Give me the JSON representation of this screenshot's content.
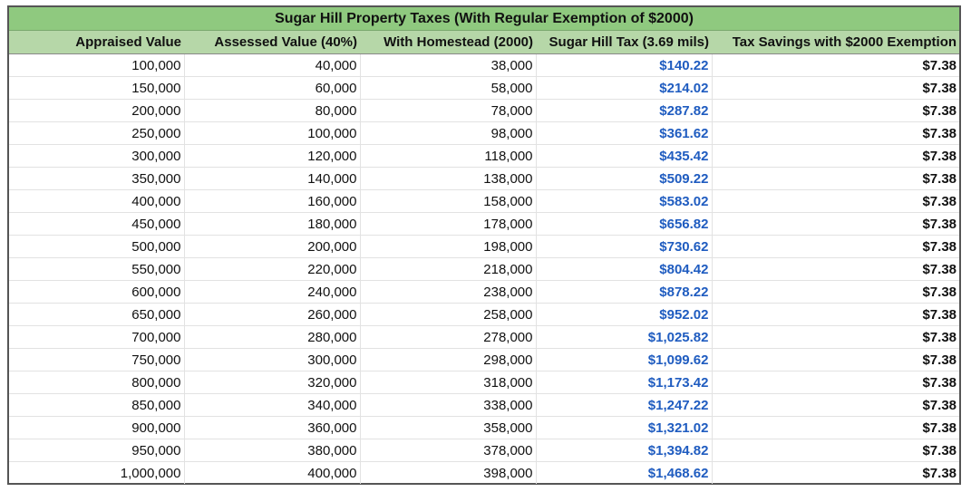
{
  "title": "Sugar Hill Property Taxes (With Regular Exemption of $2000)",
  "columns": [
    "Appraised Value",
    "Assessed Value (40%)",
    "With Homestead (2000)",
    "Sugar Hill Tax (3.69 mils)",
    "Tax Savings with $2000 Exemption"
  ],
  "colors": {
    "title_bg": "#8fc97f",
    "header_bg": "#b6d7a8",
    "tax_text": "#1f5cc0",
    "border": "#555555"
  },
  "rows": [
    {
      "appraised": "100,000",
      "assessed": "40,000",
      "homestead": "38,000",
      "tax": "$140.22",
      "savings": "$7.38"
    },
    {
      "appraised": "150,000",
      "assessed": "60,000",
      "homestead": "58,000",
      "tax": "$214.02",
      "savings": "$7.38"
    },
    {
      "appraised": "200,000",
      "assessed": "80,000",
      "homestead": "78,000",
      "tax": "$287.82",
      "savings": "$7.38"
    },
    {
      "appraised": "250,000",
      "assessed": "100,000",
      "homestead": "98,000",
      "tax": "$361.62",
      "savings": "$7.38"
    },
    {
      "appraised": "300,000",
      "assessed": "120,000",
      "homestead": "118,000",
      "tax": "$435.42",
      "savings": "$7.38"
    },
    {
      "appraised": "350,000",
      "assessed": "140,000",
      "homestead": "138,000",
      "tax": "$509.22",
      "savings": "$7.38"
    },
    {
      "appraised": "400,000",
      "assessed": "160,000",
      "homestead": "158,000",
      "tax": "$583.02",
      "savings": "$7.38"
    },
    {
      "appraised": "450,000",
      "assessed": "180,000",
      "homestead": "178,000",
      "tax": "$656.82",
      "savings": "$7.38"
    },
    {
      "appraised": "500,000",
      "assessed": "200,000",
      "homestead": "198,000",
      "tax": "$730.62",
      "savings": "$7.38"
    },
    {
      "appraised": "550,000",
      "assessed": "220,000",
      "homestead": "218,000",
      "tax": "$804.42",
      "savings": "$7.38"
    },
    {
      "appraised": "600,000",
      "assessed": "240,000",
      "homestead": "238,000",
      "tax": "$878.22",
      "savings": "$7.38"
    },
    {
      "appraised": "650,000",
      "assessed": "260,000",
      "homestead": "258,000",
      "tax": "$952.02",
      "savings": "$7.38"
    },
    {
      "appraised": "700,000",
      "assessed": "280,000",
      "homestead": "278,000",
      "tax": "$1,025.82",
      "savings": "$7.38"
    },
    {
      "appraised": "750,000",
      "assessed": "300,000",
      "homestead": "298,000",
      "tax": "$1,099.62",
      "savings": "$7.38"
    },
    {
      "appraised": "800,000",
      "assessed": "320,000",
      "homestead": "318,000",
      "tax": "$1,173.42",
      "savings": "$7.38"
    },
    {
      "appraised": "850,000",
      "assessed": "340,000",
      "homestead": "338,000",
      "tax": "$1,247.22",
      "savings": "$7.38"
    },
    {
      "appraised": "900,000",
      "assessed": "360,000",
      "homestead": "358,000",
      "tax": "$1,321.02",
      "savings": "$7.38"
    },
    {
      "appraised": "950,000",
      "assessed": "380,000",
      "homestead": "378,000",
      "tax": "$1,394.82",
      "savings": "$7.38"
    },
    {
      "appraised": "1,000,000",
      "assessed": "400,000",
      "homestead": "398,000",
      "tax": "$1,468.62",
      "savings": "$7.38"
    }
  ]
}
